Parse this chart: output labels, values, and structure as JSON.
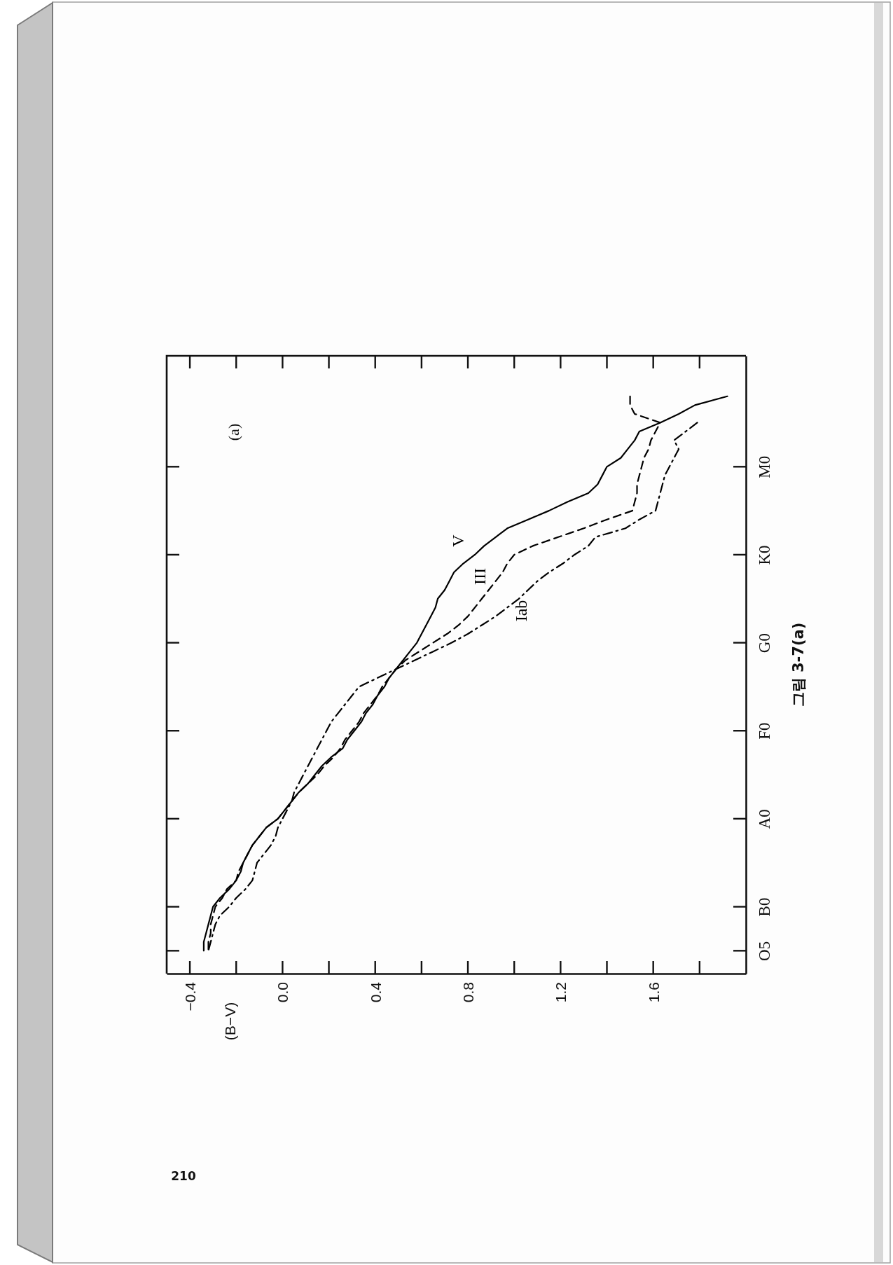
{
  "chart_data": {
    "type": "line",
    "orientation": "horizontal",
    "ylabel": "(B−V)",
    "annotations": [
      "(a)",
      "그림 3-7(a)",
      "210"
    ],
    "categories": [
      null,
      null,
      null,
      null,
      null,
      null,
      null,
      null,
      null,
      null,
      null,
      null,
      "M0",
      null,
      null,
      null,
      null,
      null,
      null,
      null,
      null,
      null,
      "K0",
      null,
      null,
      null,
      null,
      null,
      null,
      null,
      null,
      null,
      "G0",
      null,
      null,
      null,
      null,
      null,
      null,
      null,
      null,
      null,
      "F0",
      null,
      null,
      null,
      null,
      null,
      null,
      null,
      null,
      null,
      "A0",
      null,
      null,
      null,
      null,
      null,
      null,
      null,
      null,
      null,
      "B0",
      null,
      null,
      null,
      null,
      "O5",
      null,
      null
    ],
    "xlim": [
      -0.5,
      2.0
    ],
    "xticks": [
      {
        "value": -0.4,
        "label": "−0.4"
      },
      {
        "value": 0,
        "label": "0.0"
      },
      0.4,
      0.8,
      1.2,
      1.6
    ],
    "series": [
      {
        "name": "V",
        "color": "#000000",
        "line_style": "solid",
        "values": [
          null,
          null,
          null,
          null,
          1.92,
          1.78,
          1.71,
          1.63,
          1.54,
          1.52,
          1.49,
          1.46,
          1.4,
          1.38,
          1.36,
          1.32,
          1.23,
          1.15,
          1.06,
          0.97,
          0.92,
          0.87,
          0.83,
          0.78,
          0.74,
          0.72,
          0.7,
          0.67,
          0.66,
          0.64,
          0.62,
          0.6,
          0.58,
          0.55,
          0.52,
          0.49,
          0.46,
          0.44,
          0.41,
          0.39,
          0.36,
          0.34,
          0.31,
          0.28,
          0.26,
          0.21,
          0.17,
          0.14,
          0.11,
          0.07,
          0.04,
          0.01,
          -0.02,
          -0.07,
          -0.1,
          -0.13,
          -0.15,
          -0.17,
          -0.18,
          -0.2,
          -0.23,
          -0.27,
          -0.3,
          -0.31,
          -0.32,
          -0.33,
          -0.34,
          -0.34,
          null,
          null
        ]
      },
      {
        "name": "III",
        "color": "#000000",
        "line_style": "dashed",
        "values": [
          null,
          null,
          null,
          null,
          1.5,
          1.5,
          1.52,
          1.63,
          1.61,
          1.59,
          1.58,
          1.56,
          1.55,
          1.54,
          1.53,
          1.53,
          1.52,
          1.51,
          1.4,
          1.3,
          1.19,
          1.08,
          1.0,
          0.97,
          0.95,
          0.92,
          0.89,
          0.86,
          0.83,
          0.8,
          0.76,
          0.71,
          0.65,
          0.59,
          0.53,
          0.49,
          0.46,
          0.43,
          0.41,
          0.38,
          0.35,
          0.33,
          0.3,
          0.27,
          0.25,
          0.22,
          0.18,
          0.15,
          0.11,
          0.07,
          0.04,
          0.01,
          -0.02,
          -0.07,
          -0.1,
          -0.13,
          -0.15,
          -0.17,
          -0.19,
          -0.2,
          -0.24,
          -0.26,
          -0.29,
          -0.3,
          -0.31,
          -0.31,
          -0.32,
          -0.32,
          null,
          null
        ]
      },
      {
        "name": "Iab",
        "color": "#000000",
        "line_style": "dashdot",
        "values": [
          null,
          null,
          null,
          null,
          null,
          null,
          null,
          1.79,
          1.74,
          1.69,
          1.71,
          1.69,
          1.67,
          1.65,
          1.64,
          1.63,
          1.62,
          1.61,
          1.54,
          1.48,
          1.35,
          1.32,
          1.26,
          1.21,
          1.15,
          1.1,
          1.06,
          1.02,
          0.97,
          0.92,
          0.86,
          0.8,
          0.73,
          0.65,
          0.57,
          0.49,
          0.41,
          0.33,
          0.3,
          0.27,
          0.24,
          0.21,
          0.19,
          0.17,
          0.15,
          0.13,
          0.11,
          0.09,
          0.07,
          0.05,
          0.04,
          0.02,
          0.0,
          -0.02,
          -0.03,
          -0.05,
          -0.08,
          -0.11,
          -0.12,
          -0.13,
          -0.16,
          -0.2,
          -0.23,
          -0.27,
          -0.29,
          -0.3,
          -0.31,
          -0.32,
          null,
          null
        ]
      }
    ]
  }
}
